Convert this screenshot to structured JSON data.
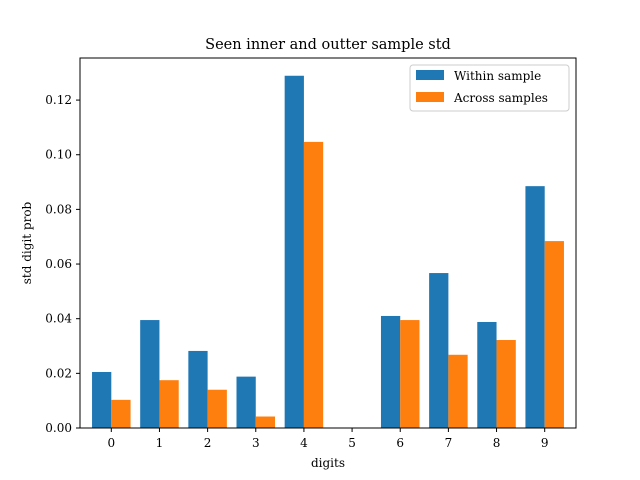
{
  "chart_data": {
    "type": "bar",
    "title": "Seen inner and outter sample std",
    "xlabel": "digits",
    "ylabel": "std digit prob",
    "categories": [
      "0",
      "1",
      "2",
      "3",
      "4",
      "5",
      "6",
      "7",
      "8",
      "9"
    ],
    "ylim": [
      0,
      0.1354
    ],
    "yticks": [
      "0.00",
      "0.02",
      "0.04",
      "0.06",
      "0.08",
      "0.10",
      "0.12"
    ],
    "grid": false,
    "legend_position": "top-right",
    "series": [
      {
        "name": "Within sample",
        "color": "#1f77b4",
        "values": [
          0.0205,
          0.0395,
          0.0282,
          0.0188,
          0.1289,
          0.0,
          0.041,
          0.0567,
          0.0388,
          0.0885
        ]
      },
      {
        "name": "Across samples",
        "color": "#ff7f0e",
        "values": [
          0.0103,
          0.0175,
          0.014,
          0.0042,
          0.1047,
          0.0,
          0.0395,
          0.0268,
          0.0322,
          0.0684
        ]
      }
    ]
  }
}
